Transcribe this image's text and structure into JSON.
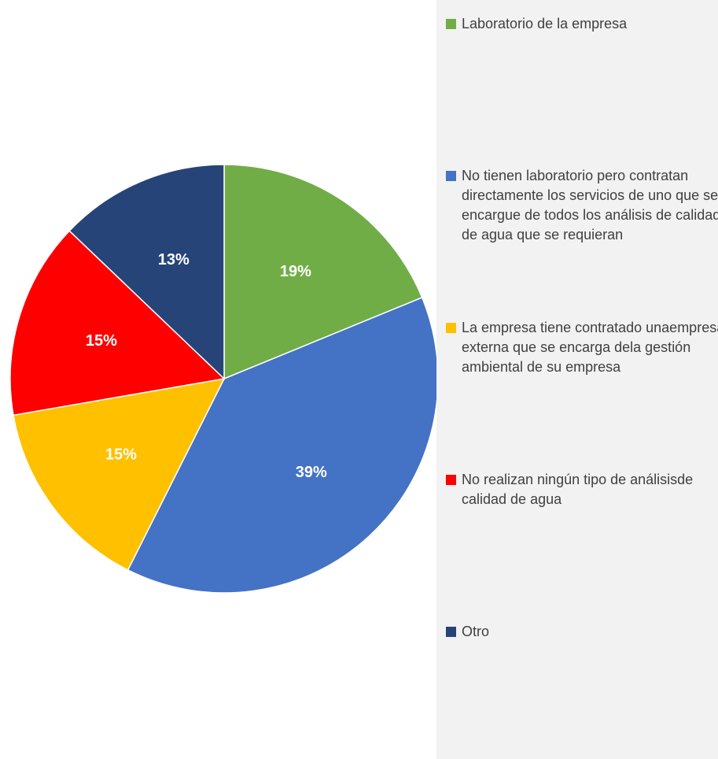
{
  "chart_data": {
    "type": "pie",
    "categories": [
      "Laboratorio de la empresa",
      "No tienen laboratorio pero contratan directamente los servicios de uno que se encargue de todos los análisis de calidad de agua que se requieran",
      "La empresa tiene contratado unaempresa externa que se encarga dela gestión ambiental de su empresa",
      "No realizan ningún tipo de análisisde calidad de agua",
      "Otro"
    ],
    "values": [
      19,
      39,
      15,
      15,
      13
    ],
    "value_labels": [
      "19%",
      "39%",
      "15%",
      "15%",
      "13%"
    ],
    "colors": [
      "#70ad47",
      "#4472c4",
      "#ffc000",
      "#ff0000",
      "#264478"
    ],
    "legend": "right"
  }
}
